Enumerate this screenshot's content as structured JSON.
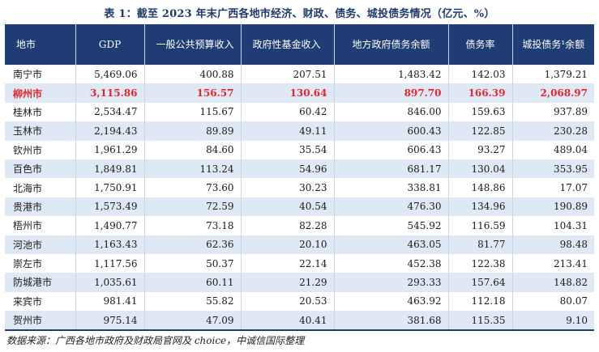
{
  "title": "表 1：截至 2023 年末广西各地市经济、财政、债务、城投债务情况（亿元、%）",
  "headers": [
    "地市",
    "GDP",
    "一般公共预算收入",
    "政府性基金收入",
    "地方政府债务余额",
    "债务率",
    "城投债务¹余额"
  ],
  "rows": [
    {
      "city": "南宁市",
      "gdp": "5,469.06",
      "budget": "400.88",
      "fund": "207.51",
      "debt": "1,483.42",
      "ratio": "142.03",
      "lgfv": "1,379.21",
      "highlight": false
    },
    {
      "city": "柳州市",
      "gdp": "3,115.86",
      "budget": "156.57",
      "fund": "130.64",
      "debt": "897.70",
      "ratio": "166.39",
      "lgfv": "2,068.97",
      "highlight": true
    },
    {
      "city": "桂林市",
      "gdp": "2,534.47",
      "budget": "115.67",
      "fund": "60.42",
      "debt": "846.00",
      "ratio": "159.63",
      "lgfv": "937.89",
      "highlight": false
    },
    {
      "city": "玉林市",
      "gdp": "2,194.43",
      "budget": "89.89",
      "fund": "49.11",
      "debt": "600.43",
      "ratio": "122.85",
      "lgfv": "230.28",
      "highlight": false
    },
    {
      "city": "钦州市",
      "gdp": "1,961.29",
      "budget": "84.60",
      "fund": "35.54",
      "debt": "606.43",
      "ratio": "93.27",
      "lgfv": "489.04",
      "highlight": false
    },
    {
      "city": "百色市",
      "gdp": "1,849.81",
      "budget": "113.24",
      "fund": "54.96",
      "debt": "681.17",
      "ratio": "130.04",
      "lgfv": "353.95",
      "highlight": false
    },
    {
      "city": "北海市",
      "gdp": "1,750.91",
      "budget": "73.60",
      "fund": "30.23",
      "debt": "338.81",
      "ratio": "148.86",
      "lgfv": "17.07",
      "highlight": false
    },
    {
      "city": "贵港市",
      "gdp": "1,573.49",
      "budget": "72.59",
      "fund": "40.54",
      "debt": "476.30",
      "ratio": "134.96",
      "lgfv": "190.89",
      "highlight": false
    },
    {
      "city": "梧州市",
      "gdp": "1,490.77",
      "budget": "73.18",
      "fund": "82.28",
      "debt": "545.92",
      "ratio": "116.59",
      "lgfv": "104.31",
      "highlight": false
    },
    {
      "city": "河池市",
      "gdp": "1,163.43",
      "budget": "62.36",
      "fund": "20.10",
      "debt": "463.05",
      "ratio": "81.77",
      "lgfv": "98.48",
      "highlight": false
    },
    {
      "city": "崇左市",
      "gdp": "1,117.56",
      "budget": "50.37",
      "fund": "22.14",
      "debt": "452.38",
      "ratio": "122.38",
      "lgfv": "213.41",
      "highlight": false
    },
    {
      "city": "防城港市",
      "gdp": "1,035.61",
      "budget": "60.11",
      "fund": "21.29",
      "debt": "293.33",
      "ratio": "157.64",
      "lgfv": "148.82",
      "highlight": false
    },
    {
      "city": "来宾市",
      "gdp": "981.41",
      "budget": "55.82",
      "fund": "20.53",
      "debt": "463.92",
      "ratio": "112.18",
      "lgfv": "80.07",
      "highlight": false
    },
    {
      "city": "贺州市",
      "gdp": "975.14",
      "budget": "47.09",
      "fund": "40.41",
      "debt": "381.68",
      "ratio": "115.35",
      "lgfv": "9.10",
      "highlight": false
    }
  ],
  "source": "数据来源：广西各地市政府及财政局官网及 choice，中诚信国际整理",
  "colors": {
    "header_bg": "#1f3d74",
    "stripe": "#dfe8f5",
    "highlight": "#e8262b",
    "title": "#1f3a6e"
  }
}
